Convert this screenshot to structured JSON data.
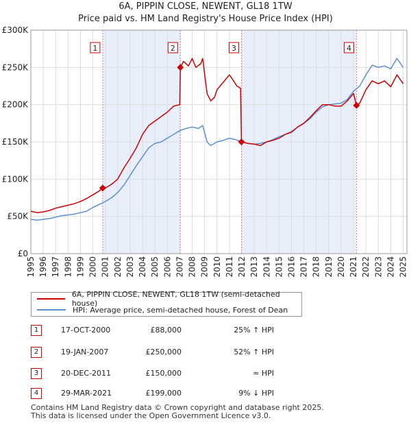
{
  "chart_data": {
    "type": "line",
    "title": "6A, PIPPIN CLOSE, NEWENT, GL18 1TW",
    "subtitle": "Price paid vs. HM Land Registry's House Price Index (HPI)",
    "ylim": [
      0,
      300000
    ],
    "xlim": [
      1995,
      2025.3
    ],
    "yticks": [
      {
        "value": 0,
        "label": "£0"
      },
      {
        "value": 50000,
        "label": "£50K"
      },
      {
        "value": 100000,
        "label": "£100K"
      },
      {
        "value": 150000,
        "label": "£150K"
      },
      {
        "value": 200000,
        "label": "£200K"
      },
      {
        "value": 250000,
        "label": "£250K"
      },
      {
        "value": 300000,
        "label": "£300K"
      }
    ],
    "xticks": [
      "1995",
      "1996",
      "1997",
      "1998",
      "1999",
      "2000",
      "2001",
      "2002",
      "2003",
      "2004",
      "2005",
      "2006",
      "2007",
      "2008",
      "2009",
      "2010",
      "2011",
      "2012",
      "2013",
      "2014",
      "2015",
      "2016",
      "2017",
      "2018",
      "2019",
      "2020",
      "2021",
      "2022",
      "2023",
      "2024",
      "2025"
    ],
    "shaded_periods": [
      [
        2000.79,
        2007.05
      ],
      [
        2011.97,
        2021.24
      ]
    ],
    "series": [
      {
        "name": "6A, PIPPIN CLOSE, NEWENT, GL18 1TW (semi-detached house)",
        "color": "#cc0000",
        "points": [
          [
            1995.0,
            57000
          ],
          [
            1995.5,
            55000
          ],
          [
            1996.0,
            56000
          ],
          [
            1996.5,
            58000
          ],
          [
            1997.0,
            61000
          ],
          [
            1997.5,
            63000
          ],
          [
            1998.0,
            65000
          ],
          [
            1998.5,
            67000
          ],
          [
            1999.0,
            70000
          ],
          [
            1999.5,
            74000
          ],
          [
            2000.0,
            79000
          ],
          [
            2000.5,
            84000
          ],
          [
            2000.79,
            88000
          ],
          [
            2001.0,
            88000
          ],
          [
            2001.5,
            93000
          ],
          [
            2002.0,
            100000
          ],
          [
            2002.5,
            115000
          ],
          [
            2003.0,
            128000
          ],
          [
            2003.5,
            142000
          ],
          [
            2004.0,
            160000
          ],
          [
            2004.5,
            172000
          ],
          [
            2005.0,
            178000
          ],
          [
            2005.5,
            184000
          ],
          [
            2006.0,
            190000
          ],
          [
            2006.5,
            198000
          ],
          [
            2007.0,
            200000
          ],
          [
            2007.05,
            250000
          ],
          [
            2007.3,
            258000
          ],
          [
            2007.7,
            252000
          ],
          [
            2008.0,
            262000
          ],
          [
            2008.3,
            250000
          ],
          [
            2008.7,
            255000
          ],
          [
            2008.85,
            262000
          ],
          [
            2009.2,
            215000
          ],
          [
            2009.5,
            205000
          ],
          [
            2009.8,
            210000
          ],
          [
            2010.0,
            220000
          ],
          [
            2010.5,
            230000
          ],
          [
            2011.0,
            240000
          ],
          [
            2011.3,
            233000
          ],
          [
            2011.6,
            225000
          ],
          [
            2011.9,
            222000
          ],
          [
            2011.97,
            150000
          ],
          [
            2012.5,
            148000
          ],
          [
            2013.0,
            147000
          ],
          [
            2013.5,
            145000
          ],
          [
            2014.0,
            150000
          ],
          [
            2014.5,
            152000
          ],
          [
            2015.0,
            155000
          ],
          [
            2015.5,
            160000
          ],
          [
            2016.0,
            163000
          ],
          [
            2016.5,
            170000
          ],
          [
            2017.0,
            175000
          ],
          [
            2017.5,
            183000
          ],
          [
            2018.0,
            192000
          ],
          [
            2018.5,
            200000
          ],
          [
            2019.0,
            200000
          ],
          [
            2019.5,
            198000
          ],
          [
            2020.0,
            198000
          ],
          [
            2020.5,
            205000
          ],
          [
            2021.0,
            215000
          ],
          [
            2021.24,
            199000
          ],
          [
            2021.5,
            202000
          ],
          [
            2022.0,
            220000
          ],
          [
            2022.5,
            232000
          ],
          [
            2023.0,
            228000
          ],
          [
            2023.5,
            232000
          ],
          [
            2024.0,
            224000
          ],
          [
            2024.5,
            240000
          ],
          [
            2025.0,
            228000
          ]
        ]
      },
      {
        "name": "HPI: Average price, semi-detached house, Forest of Dean",
        "color": "#5a8fd0",
        "points": [
          [
            1995.0,
            46000
          ],
          [
            1995.5,
            45000
          ],
          [
            1996.0,
            46000
          ],
          [
            1996.5,
            47000
          ],
          [
            1997.0,
            49000
          ],
          [
            1997.5,
            51000
          ],
          [
            1998.0,
            52000
          ],
          [
            1998.5,
            53000
          ],
          [
            1999.0,
            55000
          ],
          [
            1999.5,
            57000
          ],
          [
            2000.0,
            62000
          ],
          [
            2000.5,
            66000
          ],
          [
            2001.0,
            70000
          ],
          [
            2001.5,
            75000
          ],
          [
            2002.0,
            82000
          ],
          [
            2002.5,
            92000
          ],
          [
            2003.0,
            105000
          ],
          [
            2003.5,
            118000
          ],
          [
            2004.0,
            130000
          ],
          [
            2004.5,
            142000
          ],
          [
            2005.0,
            148000
          ],
          [
            2005.5,
            150000
          ],
          [
            2006.0,
            155000
          ],
          [
            2006.5,
            160000
          ],
          [
            2007.0,
            165000
          ],
          [
            2007.5,
            168000
          ],
          [
            2008.0,
            170000
          ],
          [
            2008.5,
            168000
          ],
          [
            2008.85,
            172000
          ],
          [
            2009.2,
            150000
          ],
          [
            2009.5,
            145000
          ],
          [
            2010.0,
            150000
          ],
          [
            2010.5,
            152000
          ],
          [
            2011.0,
            155000
          ],
          [
            2011.5,
            153000
          ],
          [
            2012.0,
            150000
          ],
          [
            2012.5,
            148000
          ],
          [
            2013.0,
            147000
          ],
          [
            2013.5,
            148000
          ],
          [
            2014.0,
            150000
          ],
          [
            2014.5,
            153000
          ],
          [
            2015.0,
            157000
          ],
          [
            2015.5,
            160000
          ],
          [
            2016.0,
            164000
          ],
          [
            2016.5,
            170000
          ],
          [
            2017.0,
            175000
          ],
          [
            2017.5,
            181000
          ],
          [
            2018.0,
            190000
          ],
          [
            2018.5,
            197000
          ],
          [
            2019.0,
            200000
          ],
          [
            2019.5,
            201000
          ],
          [
            2020.0,
            202000
          ],
          [
            2020.5,
            207000
          ],
          [
            2021.0,
            218000
          ],
          [
            2021.5,
            225000
          ],
          [
            2022.0,
            240000
          ],
          [
            2022.5,
            253000
          ],
          [
            2023.0,
            250000
          ],
          [
            2023.5,
            252000
          ],
          [
            2024.0,
            248000
          ],
          [
            2024.5,
            262000
          ],
          [
            2025.0,
            250000
          ]
        ]
      }
    ],
    "sales": [
      {
        "id": "1",
        "x": 2000.79,
        "y": 88000
      },
      {
        "id": "2",
        "x": 2007.05,
        "y": 250000
      },
      {
        "id": "3",
        "x": 2011.97,
        "y": 150000
      },
      {
        "id": "4",
        "x": 2021.24,
        "y": 199000
      }
    ]
  },
  "legend": {
    "property": "6A, PIPPIN CLOSE, NEWENT, GL18 1TW (semi-detached house)",
    "hpi": "HPI: Average price, semi-detached house, Forest of Dean"
  },
  "table": [
    {
      "num": "1",
      "date": "17-OCT-2000",
      "price": "£88,000",
      "hpi": "25% ↑ HPI"
    },
    {
      "num": "2",
      "date": "19-JAN-2007",
      "price": "£250,000",
      "hpi": "52% ↑ HPI"
    },
    {
      "num": "3",
      "date": "20-DEC-2011",
      "price": "£150,000",
      "hpi": "≈ HPI"
    },
    {
      "num": "4",
      "date": "29-MAR-2021",
      "price": "£199,000",
      "hpi": "9% ↓ HPI"
    }
  ],
  "footer": {
    "line1": "Contains HM Land Registry data © Crown copyright and database right 2025.",
    "line2": "This data is licensed under the Open Government Licence v3.0."
  },
  "colors": {
    "property": "#cc0000",
    "hpi": "#5a8fd0",
    "shade": "#e8eefa",
    "grid": "#dddddd"
  }
}
